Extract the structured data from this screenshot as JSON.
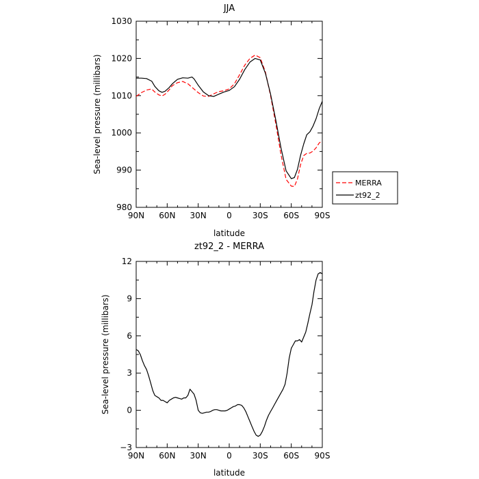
{
  "chart_data": [
    {
      "type": "line",
      "title": "JJA",
      "xlabel": "latitude",
      "ylabel": "Sea-level pressure (millibars)",
      "xlim": [
        90,
        -90
      ],
      "ylim": [
        980,
        1030
      ],
      "xticks": [
        90,
        60,
        30,
        0,
        -30,
        -60,
        -90
      ],
      "xticklabels": [
        "90N",
        "60N",
        "30N",
        "0",
        "30S",
        "60S",
        "90S"
      ],
      "yticks": [
        980,
        990,
        1000,
        1010,
        1020,
        1030
      ],
      "yticklabels": [
        "980",
        "990",
        "1000",
        "1010",
        "1020",
        "1030"
      ],
      "legend": "outside-right",
      "series": [
        {
          "name": "MERRA",
          "color": "#ff0000",
          "dash": "dashed",
          "x": [
            90,
            85,
            80,
            75,
            72,
            68,
            65,
            62,
            58,
            55,
            50,
            45,
            40,
            35,
            30,
            25,
            20,
            15,
            10,
            5,
            0,
            -5,
            -10,
            -15,
            -20,
            -25,
            -30,
            -35,
            -40,
            -45,
            -50,
            -55,
            -60,
            -63,
            -66,
            -69,
            -72,
            -75,
            -78,
            -81,
            -84,
            -87,
            -90
          ],
          "y": [
            1009.8,
            1010.8,
            1011.5,
            1011.8,
            1011.0,
            1010.2,
            1009.9,
            1010.4,
            1011.6,
            1012.7,
            1013.5,
            1013.8,
            1013.2,
            1012.0,
            1010.8,
            1009.9,
            1009.8,
            1010.5,
            1011.1,
            1011.3,
            1011.8,
            1013.2,
            1015.6,
            1018.2,
            1020.0,
            1020.9,
            1020.2,
            1016.3,
            1010.0,
            1002.5,
            994.2,
            987.5,
            985.7,
            985.6,
            987.6,
            991.5,
            993.9,
            994.5,
            994.6,
            995.1,
            996.0,
            997.3,
            997.8
          ]
        },
        {
          "name": "zt92_2",
          "color": "#000000",
          "dash": "solid",
          "x": [
            90,
            85,
            80,
            75,
            72,
            68,
            65,
            62,
            58,
            55,
            50,
            45,
            40,
            36,
            34,
            30,
            25,
            20,
            15,
            10,
            5,
            0,
            -5,
            -10,
            -15,
            -20,
            -25,
            -30,
            -35,
            -40,
            -45,
            -50,
            -55,
            -60,
            -63,
            -66,
            -69,
            -72,
            -75,
            -78,
            -81,
            -84,
            -87,
            -90
          ],
          "y": [
            1014.7,
            1014.7,
            1014.6,
            1013.9,
            1012.5,
            1011.3,
            1010.9,
            1011.2,
            1012.2,
            1013.2,
            1014.4,
            1014.8,
            1014.7,
            1015.0,
            1014.5,
            1012.8,
            1011.0,
            1010.0,
            1009.8,
            1010.4,
            1011.0,
            1011.4,
            1012.4,
            1014.4,
            1017.0,
            1019.0,
            1020.0,
            1019.6,
            1016.0,
            1010.4,
            1003.5,
            996.0,
            989.8,
            987.7,
            988.0,
            990.2,
            994.0,
            997.0,
            999.5,
            1000.3,
            1001.8,
            1003.8,
            1006.5,
            1008.5
          ]
        }
      ]
    },
    {
      "type": "line",
      "title": "zt92_2 - MERRA",
      "xlabel": "latitude",
      "ylabel": "Sea-level pressure (millibars)",
      "xlim": [
        90,
        -90
      ],
      "ylim": [
        -3,
        12
      ],
      "xticks": [
        90,
        60,
        30,
        0,
        -30,
        -60,
        -90
      ],
      "xticklabels": [
        "90N",
        "60N",
        "30N",
        "0",
        "30S",
        "60S",
        "90S"
      ],
      "yticks": [
        -3,
        0,
        3,
        6,
        9,
        12
      ],
      "yticklabels": [
        "−3",
        "0",
        "3",
        "6",
        "9",
        "12"
      ],
      "series": [
        {
          "color": "#000000",
          "dash": "solid",
          "x": [
            90,
            88,
            86,
            84,
            82,
            80,
            78,
            76,
            74,
            72,
            70,
            68,
            66,
            64,
            62,
            60,
            58,
            56,
            54,
            52,
            50,
            48,
            46,
            44,
            42,
            40,
            38,
            36,
            34,
            32,
            30,
            28,
            26,
            24,
            22,
            20,
            18,
            16,
            14,
            12,
            10,
            8,
            6,
            4,
            2,
            0,
            -2,
            -4,
            -6,
            -8,
            -10,
            -12,
            -14,
            -16,
            -18,
            -20,
            -22,
            -24,
            -26,
            -28,
            -30,
            -32,
            -34,
            -36,
            -38,
            -40,
            -42,
            -44,
            -46,
            -48,
            -50,
            -52,
            -54,
            -56,
            -58,
            -60,
            -62,
            -64,
            -66,
            -68,
            -70,
            -72,
            -74,
            -76,
            -78,
            -80,
            -82,
            -84,
            -86,
            -88,
            -90
          ],
          "y": [
            4.9,
            4.8,
            4.5,
            4.0,
            3.6,
            3.3,
            2.8,
            2.2,
            1.6,
            1.2,
            1.1,
            1.0,
            0.8,
            0.8,
            0.7,
            0.6,
            0.8,
            0.9,
            1.0,
            1.05,
            1.0,
            0.95,
            0.9,
            1.0,
            1.0,
            1.2,
            1.7,
            1.5,
            1.3,
            0.8,
            0.0,
            -0.2,
            -0.25,
            -0.2,
            -0.15,
            -0.15,
            -0.1,
            0.0,
            0.05,
            0.05,
            0.0,
            -0.05,
            -0.05,
            -0.05,
            0.0,
            0.1,
            0.2,
            0.3,
            0.35,
            0.45,
            0.45,
            0.4,
            0.2,
            -0.1,
            -0.5,
            -0.9,
            -1.3,
            -1.7,
            -2.0,
            -2.1,
            -2.0,
            -1.7,
            -1.3,
            -0.8,
            -0.4,
            -0.1,
            0.2,
            0.5,
            0.8,
            1.1,
            1.4,
            1.7,
            2.1,
            3.0,
            4.2,
            5.0,
            5.3,
            5.6,
            5.6,
            5.7,
            5.5,
            5.9,
            6.3,
            7.0,
            7.8,
            8.5,
            9.6,
            10.5,
            11.0,
            11.1,
            11.0
          ]
        }
      ]
    }
  ]
}
